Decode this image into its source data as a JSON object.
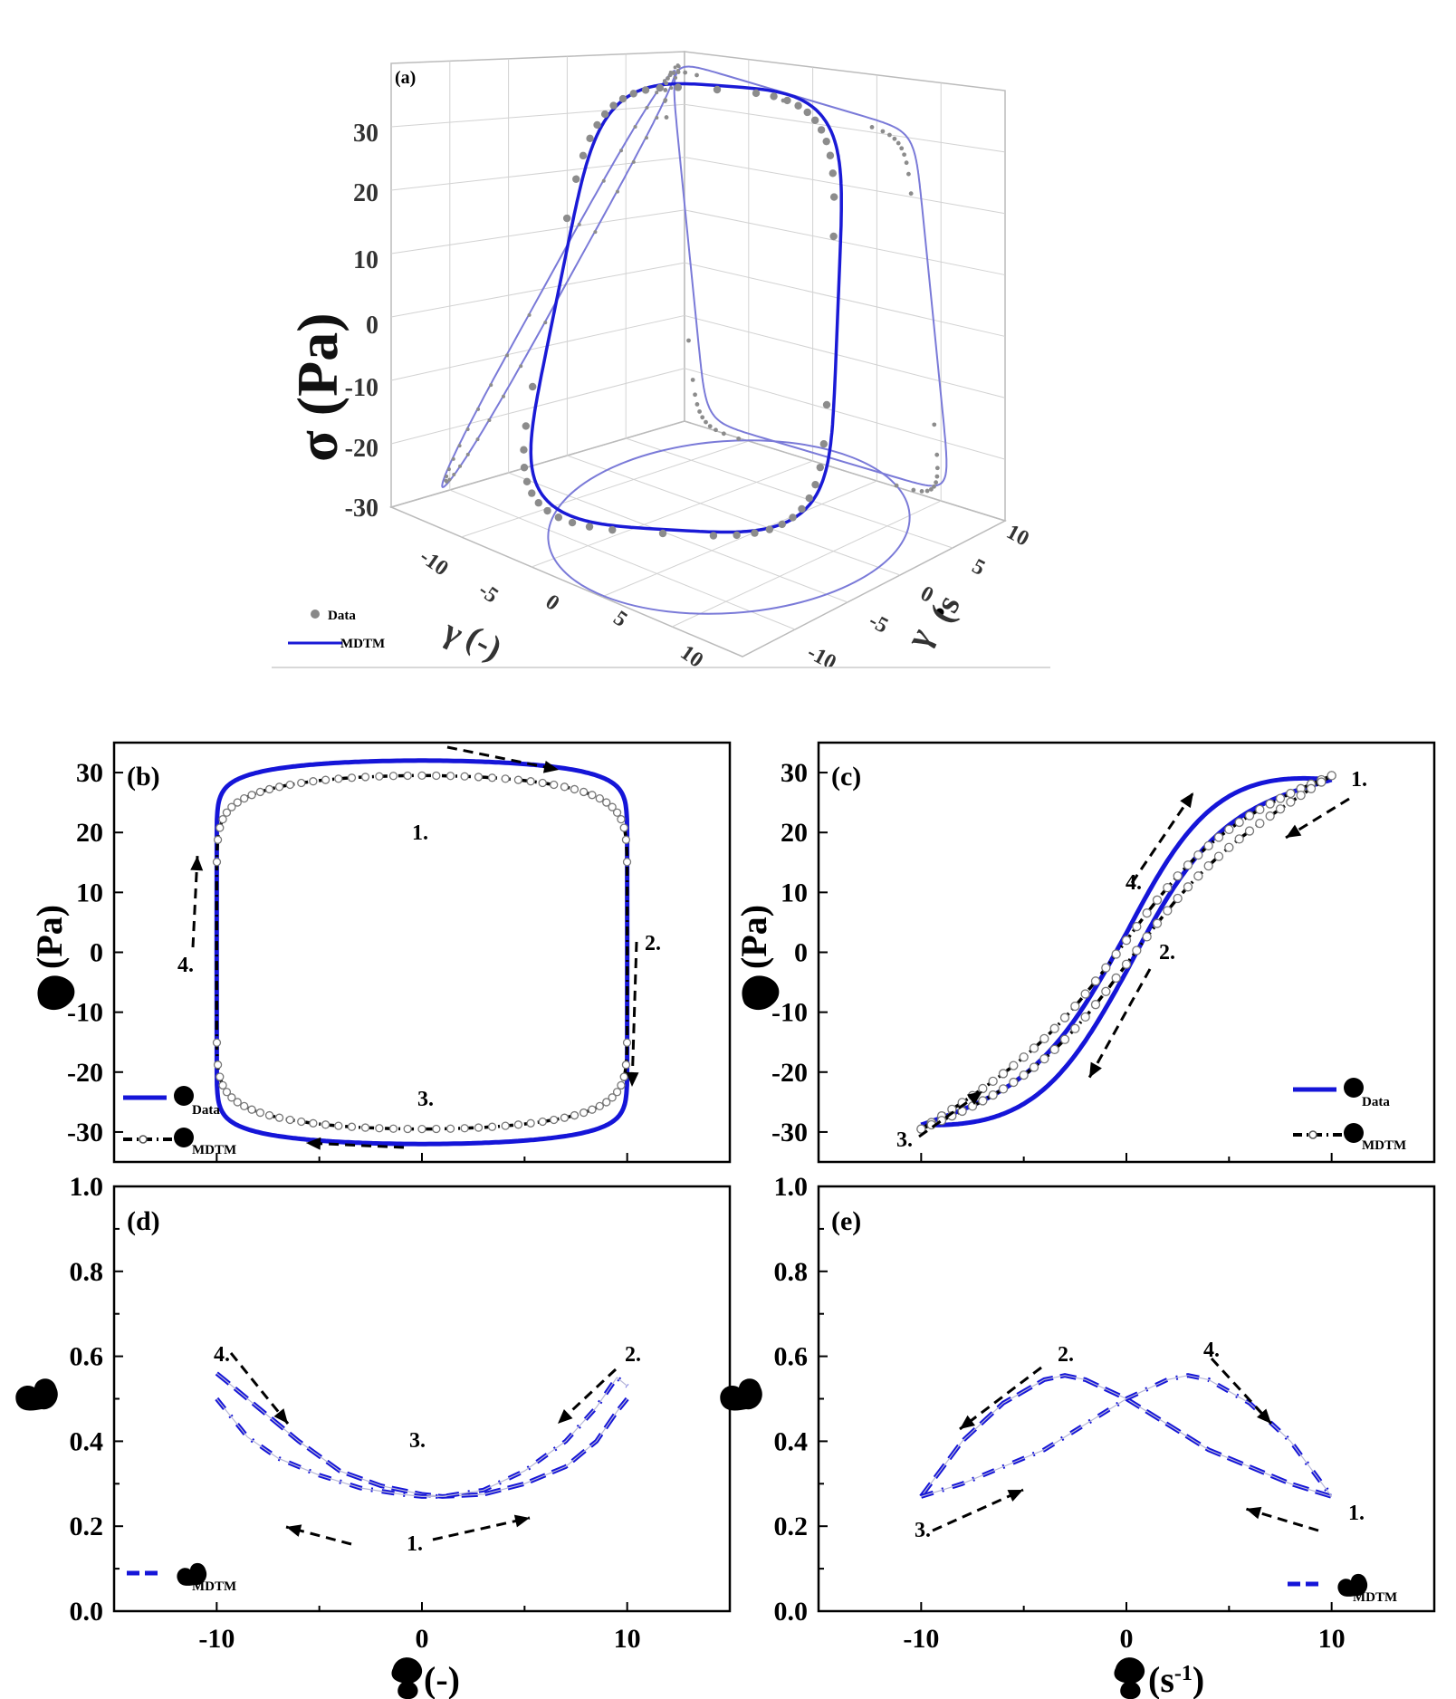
{
  "chart_data": [
    {
      "panel": "(a)",
      "type": "scatter",
      "xlabel": "γ (-)",
      "ylabel": "γ̇ (s⁻¹)",
      "zlabel": "σ (Pa)",
      "z_ticks": [
        "30",
        "20",
        "10",
        "0",
        "-10",
        "-20",
        "-30"
      ],
      "x_ticks": [
        "-10",
        "-5",
        "0",
        "5",
        "10"
      ],
      "y_ticks": [
        "10",
        "5",
        "0",
        "-5",
        "-10"
      ],
      "legend": [
        "Data",
        "MDTM"
      ],
      "colors": {
        "model": "#1a1ad6",
        "data": "#8c8c8c",
        "projection": "#7a7ad8"
      }
    },
    {
      "panel": "(b)",
      "type": "line",
      "xlim": [
        -15,
        15
      ],
      "ylim": [
        -35,
        35
      ],
      "y_ticks": [
        "30",
        "20",
        "10",
        "0",
        "-10",
        "-20",
        "-30"
      ],
      "ylabel": "(Pa)",
      "legend": [
        "Data",
        "MDTM"
      ],
      "series": [
        {
          "name": "Data",
          "shape": "elastic-loop",
          "amplitude_x": 10,
          "amplitude_y": 32,
          "exponent": 8,
          "color": "#1515d8"
        },
        {
          "name": "MDTM",
          "shape": "elastic-loop",
          "amplitude_x": 10,
          "amplitude_y": 29.5,
          "exponent": 5,
          "color": "#000000",
          "markers": "open-circle"
        }
      ],
      "annotations": [
        "1.",
        "2.",
        "3.",
        "4."
      ]
    },
    {
      "panel": "(c)",
      "type": "line",
      "xlim": [
        -15,
        15
      ],
      "ylim": [
        -35,
        35
      ],
      "y_ticks": [
        "30",
        "20",
        "10",
        "0",
        "-10",
        "-20",
        "-30"
      ],
      "ylabel": "(Pa)",
      "legend": [
        "Data",
        "MDTM"
      ],
      "series": [
        {
          "name": "Data",
          "shape": "viscous-loop",
          "amplitude_x": 10,
          "amplitude_y": 32,
          "color": "#1515d8"
        },
        {
          "name": "MDTM",
          "shape": "viscous-loop",
          "amplitude_x": 10,
          "amplitude_y": 29.5,
          "color": "#000000",
          "markers": "open-circle"
        }
      ],
      "annotations": [
        "1.",
        "2.",
        "3.",
        "4."
      ]
    },
    {
      "panel": "(d)",
      "type": "line",
      "xlim": [
        -15,
        15
      ],
      "ylim": [
        0,
        1
      ],
      "x_ticks": [
        "-10",
        "0",
        "10"
      ],
      "y_ticks": [
        "1.0",
        "0.8",
        "0.6",
        "0.4",
        "0.2",
        "0.0"
      ],
      "xlabel": "(-)",
      "legend": [
        "MDTM"
      ],
      "series": [
        {
          "name": "MDTM",
          "branch": "upper",
          "x": [
            -10,
            -9.5,
            -8,
            -6,
            -4,
            -2,
            0,
            1,
            3,
            5,
            7,
            8.5,
            9.5,
            10
          ],
          "y": [
            0.56,
            0.54,
            0.48,
            0.4,
            0.33,
            0.295,
            0.275,
            0.27,
            0.275,
            0.3,
            0.34,
            0.4,
            0.47,
            0.5
          ],
          "color": "#1515d8"
        },
        {
          "name": "MDTM",
          "branch": "lower",
          "x": [
            -10,
            -9.5,
            -8.5,
            -7,
            -5,
            -3,
            -1,
            0,
            1,
            3,
            5,
            7,
            8.5,
            9.5,
            10
          ],
          "y": [
            0.5,
            0.47,
            0.41,
            0.36,
            0.32,
            0.29,
            0.275,
            0.27,
            0.27,
            0.285,
            0.33,
            0.4,
            0.48,
            0.55,
            0.53
          ],
          "color": "#1515d8"
        }
      ],
      "annotations": [
        "1.",
        "2.",
        "3.",
        "4."
      ]
    },
    {
      "panel": "(e)",
      "type": "line",
      "xlim": [
        -15,
        15
      ],
      "ylim": [
        0,
        1
      ],
      "x_ticks": [
        "-10",
        "0",
        "10"
      ],
      "y_ticks": [
        "1.0",
        "0.8",
        "0.6",
        "0.4",
        "0.2",
        "0.0"
      ],
      "xlabel": "(s⁻¹)",
      "legend": [
        "MDTM"
      ],
      "series": [
        {
          "name": "MDTM",
          "branch": "a",
          "x": [
            -10,
            -8,
            -6,
            -4,
            -3,
            -2,
            0,
            2,
            4,
            6,
            8,
            10
          ],
          "y": [
            0.27,
            0.4,
            0.49,
            0.545,
            0.555,
            0.545,
            0.5,
            0.44,
            0.38,
            0.34,
            0.3,
            0.27
          ],
          "color": "#1515d8"
        },
        {
          "name": "MDTM",
          "branch": "b",
          "x": [
            -10,
            -8,
            -6,
            -4,
            -2,
            0,
            2,
            3,
            4,
            6,
            8,
            10
          ],
          "y": [
            0.27,
            0.3,
            0.34,
            0.38,
            0.44,
            0.5,
            0.545,
            0.555,
            0.545,
            0.49,
            0.4,
            0.27
          ],
          "color": "#1515d8"
        }
      ],
      "annotations": [
        "1.",
        "2.",
        "3.",
        "4."
      ]
    }
  ],
  "labels": {
    "a": "(a)",
    "b": "(b)",
    "c": "(c)",
    "d": "(d)",
    "e": "(e)",
    "y_pa": "(Pa)",
    "x_gamma": "(-)",
    "x_gammadot": "(s",
    "x_gammadot_sup": "-1",
    "x_gammadot_close": ")",
    "sigma_pa": "σ (Pa)",
    "legend_data": "Data",
    "legend_mdtm": "MDTM",
    "sub_data": "Data",
    "sub_mdtm": "MDTM",
    "n1": "1.",
    "n2": "2.",
    "n3": "3.",
    "n4": "4.",
    "gamma_3d": "(-)",
    "gammadot_3d": "(s"
  }
}
